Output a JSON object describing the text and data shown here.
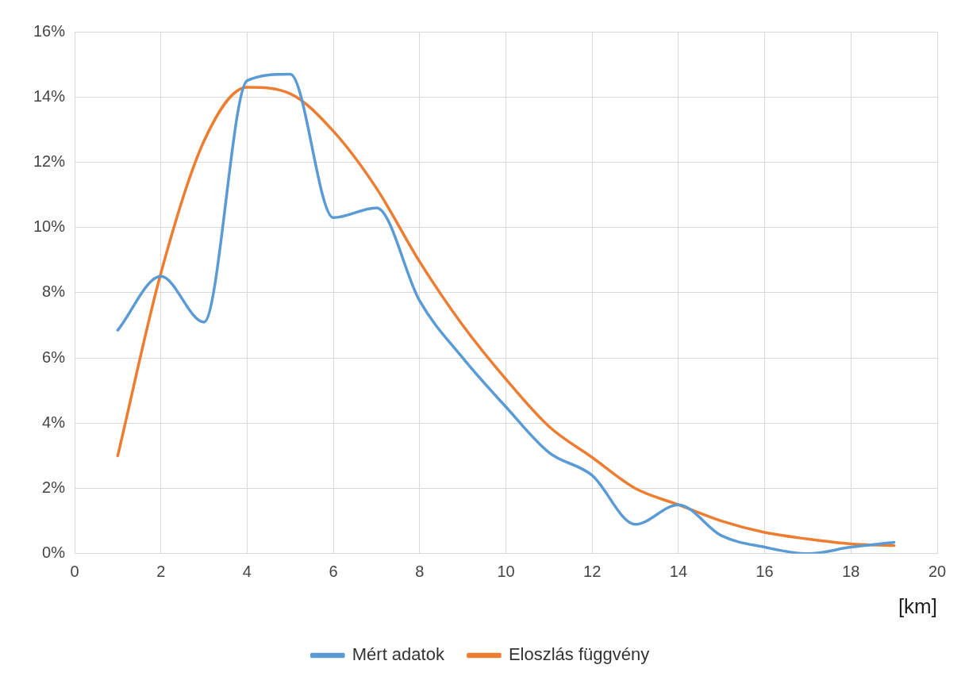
{
  "chart_data": {
    "type": "line",
    "xlabel": "[km]",
    "x": [
      1,
      2,
      3,
      4,
      5,
      6,
      7,
      8,
      9,
      10,
      11,
      12,
      13,
      14,
      15,
      16,
      17,
      18,
      19
    ],
    "series": [
      {
        "name": "Mért adatok",
        "color": "#5b9bd5",
        "values": [
          6.85,
          8.5,
          7.1,
          14.5,
          14.7,
          10.3,
          10.6,
          7.75,
          6.0,
          4.5,
          3.1,
          2.4,
          0.9,
          1.5,
          0.55,
          0.2,
          0.0,
          0.2,
          0.35
        ]
      },
      {
        "name": "Eloszlás függvény",
        "color": "#ed7d31",
        "values": [
          3.0,
          8.6,
          12.65,
          14.3,
          14.1,
          12.95,
          11.2,
          8.95,
          7.0,
          5.35,
          3.9,
          2.95,
          2.0,
          1.5,
          1.0,
          0.65,
          0.45,
          0.3,
          0.25
        ]
      }
    ],
    "xlim": [
      0,
      20
    ],
    "xticks": [
      0,
      2,
      4,
      6,
      8,
      10,
      12,
      14,
      16,
      18,
      20
    ],
    "ylim": [
      0,
      16
    ],
    "yticks": [
      {
        "value": 0,
        "label": "0%"
      },
      {
        "value": 2,
        "label": "2%"
      },
      {
        "value": 4,
        "label": "4%"
      },
      {
        "value": 6,
        "label": "6%"
      },
      {
        "value": 8,
        "label": "8%"
      },
      {
        "value": 10,
        "label": "10%"
      },
      {
        "value": 12,
        "label": "12%"
      },
      {
        "value": 14,
        "label": "14%"
      },
      {
        "value": 16,
        "label": "16%"
      }
    ],
    "grid": true,
    "legend": "bottom",
    "marker": "none",
    "line_style": "solid"
  }
}
